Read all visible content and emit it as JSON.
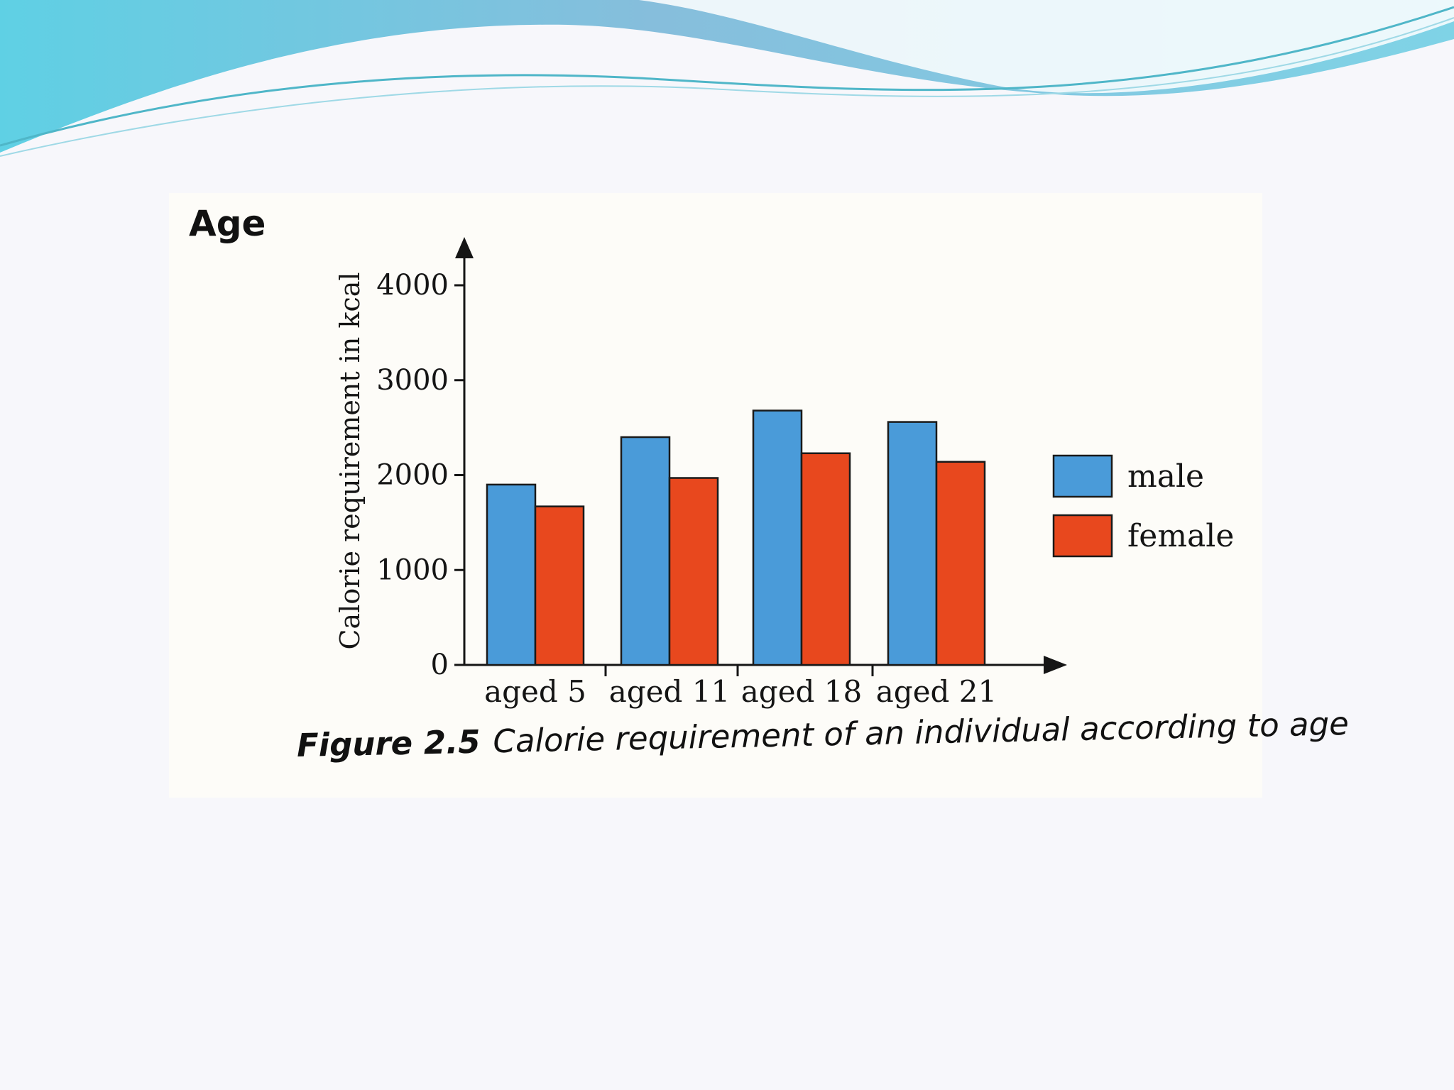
{
  "heading": "Age",
  "caption": {
    "figure_number": "Figure 2.5",
    "text": "Calorie requirement of an individual according to age"
  },
  "colors": {
    "male": "#4a9bd9",
    "female": "#e8481e",
    "axis": "#151515"
  },
  "chart_data": {
    "type": "bar",
    "title": "",
    "xlabel": "",
    "ylabel": "Calorie requirement in kcal",
    "categories": [
      "aged 5",
      "aged 11",
      "aged 18",
      "aged 21"
    ],
    "series": [
      {
        "name": "male",
        "values": [
          1900,
          2400,
          2680,
          2560
        ]
      },
      {
        "name": "female",
        "values": [
          1670,
          1970,
          2230,
          2140
        ]
      }
    ],
    "ylim": [
      0,
      4000
    ],
    "yticks": [
      0,
      1000,
      2000,
      3000,
      4000
    ],
    "ytick_labels": [
      "0",
      "1000",
      "2000",
      "3000",
      "4000"
    ],
    "grid": false,
    "legend": "right"
  }
}
